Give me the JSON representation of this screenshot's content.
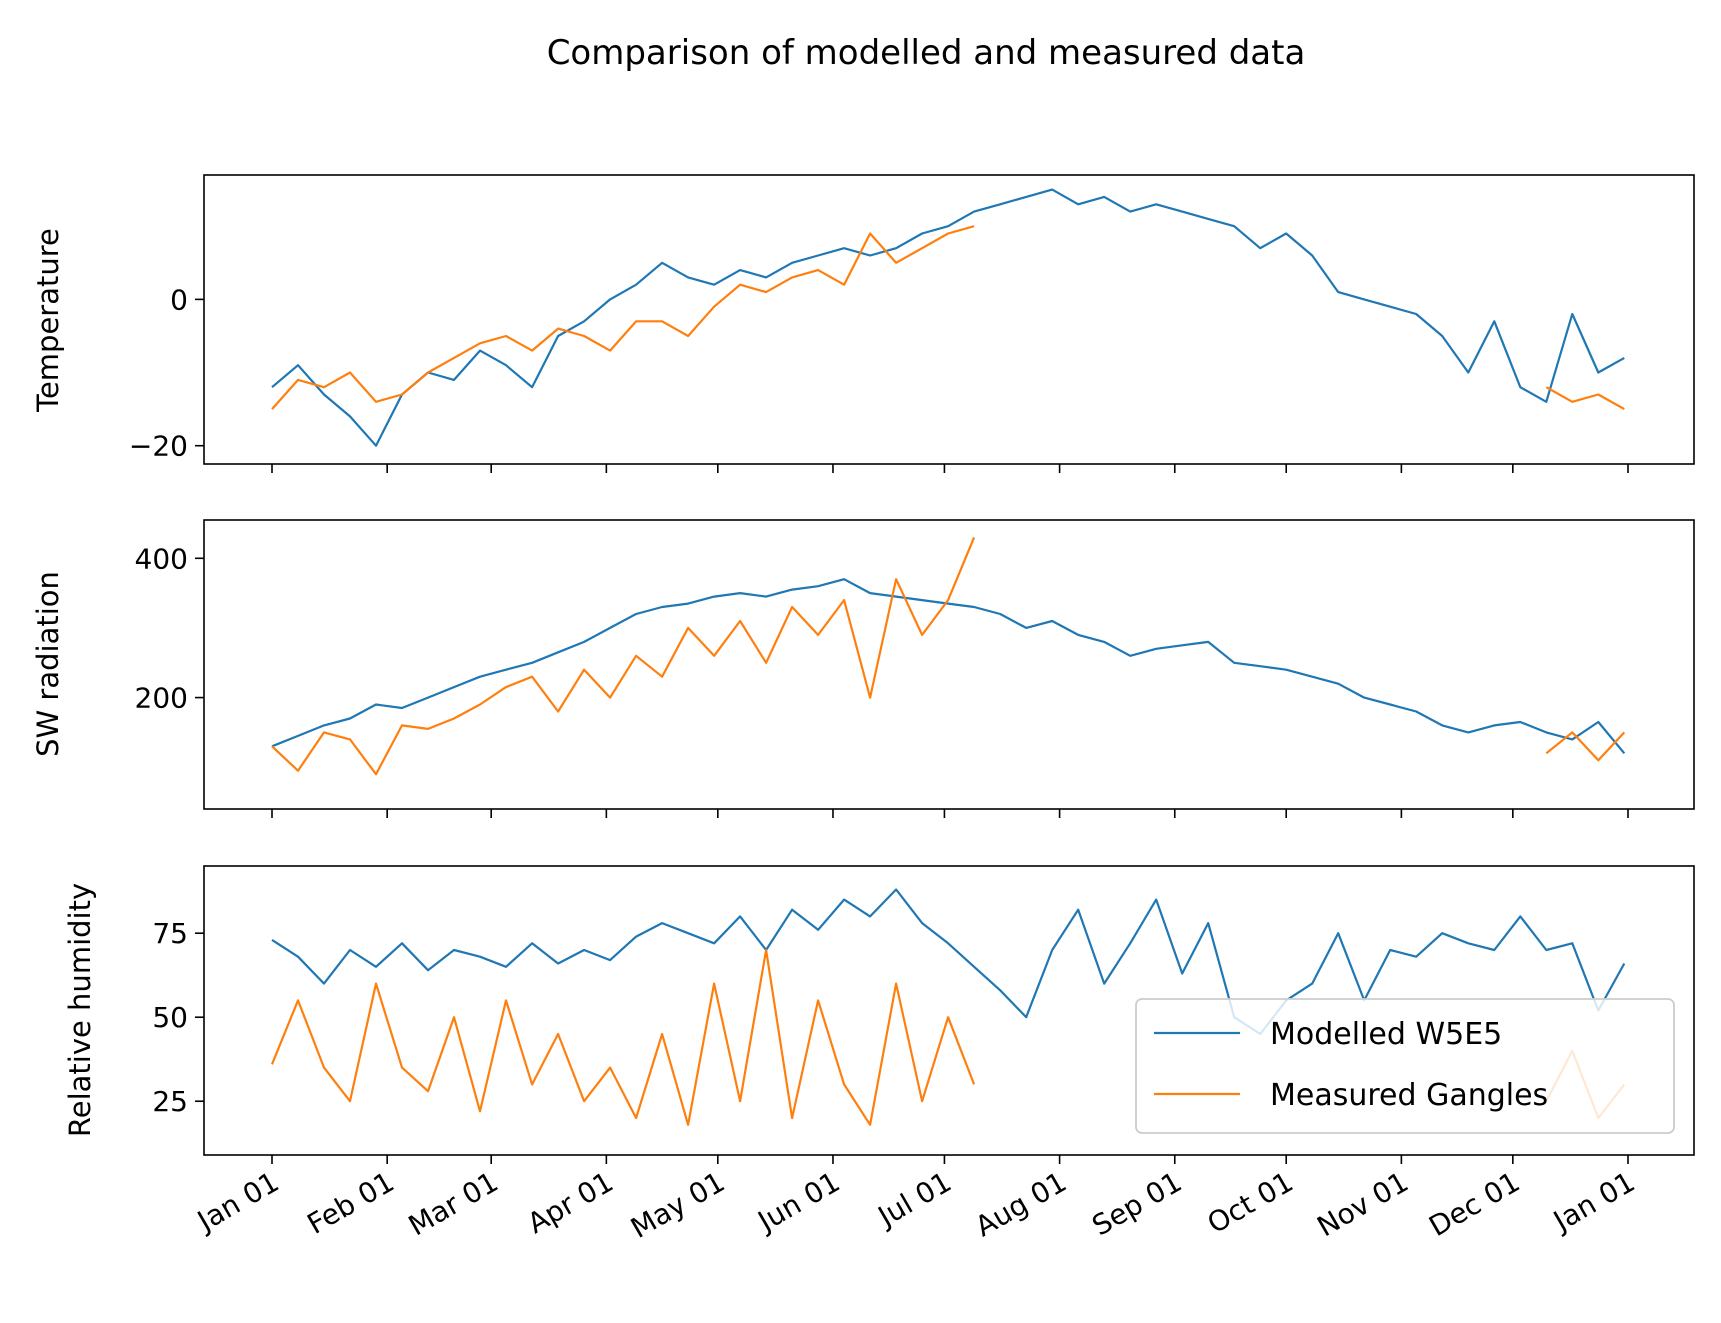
{
  "title": "Comparison of modelled and measured data",
  "colors": {
    "modelled": "#1f77b4",
    "measured": "#ff7f0e"
  },
  "legend": {
    "placement": "lower-right",
    "entries": [
      {
        "label": "Modelled W5E5",
        "color": "#1f77b4"
      },
      {
        "label": "Measured Gangles",
        "color": "#ff7f0e"
      }
    ]
  },
  "chart_data": [
    {
      "type": "line",
      "ylabel": "Temperature",
      "xlabel": "",
      "xlim": [
        "Dec 26",
        "Jan 06"
      ],
      "ylim": [
        -22.5,
        17
      ],
      "yticks": [
        -20,
        0
      ],
      "yticklabels": [
        "−20",
        "0"
      ],
      "xtick_labels": [
        "Jan 01",
        "Feb 01",
        "Mar 01",
        "Apr 01",
        "May 01",
        "Jun 01",
        "Jul 01",
        "Aug 01",
        "Sep 01",
        "Oct 01",
        "Nov 01",
        "Dec 01",
        "Jan 01"
      ],
      "series": [
        {
          "name": "Modelled W5E5",
          "color": "#1f77b4",
          "x": [
            "Jan 01",
            "Jan 08",
            "Jan 15",
            "Jan 22",
            "Jan 29",
            "Feb 05",
            "Feb 12",
            "Feb 19",
            "Feb 26",
            "Mar 05",
            "Mar 12",
            "Mar 19",
            "Mar 26",
            "Apr 02",
            "Apr 09",
            "Apr 16",
            "Apr 23",
            "Apr 30",
            "May 07",
            "May 14",
            "May 21",
            "May 28",
            "Jun 04",
            "Jun 11",
            "Jun 18",
            "Jun 25",
            "Jul 02",
            "Jul 09",
            "Jul 16",
            "Jul 23",
            "Jul 30",
            "Aug 06",
            "Aug 13",
            "Aug 20",
            "Aug 27",
            "Sep 03",
            "Sep 10",
            "Sep 17",
            "Sep 24",
            "Oct 01",
            "Oct 08",
            "Oct 15",
            "Oct 22",
            "Oct 29",
            "Nov 05",
            "Nov 12",
            "Nov 19",
            "Nov 26",
            "Dec 03",
            "Dec 10",
            "Dec 17",
            "Dec 24",
            "Dec 31"
          ],
          "y": [
            -12,
            -9,
            -13,
            -16,
            -20,
            -13,
            -10,
            -11,
            -7,
            -9,
            -12,
            -5,
            -3,
            0,
            2,
            5,
            3,
            2,
            4,
            3,
            5,
            6,
            7,
            6,
            7,
            9,
            10,
            12,
            13,
            14,
            15,
            13,
            14,
            12,
            13,
            12,
            11,
            10,
            7,
            9,
            6,
            1,
            0,
            -1,
            -2,
            -5,
            -10,
            -3,
            -12,
            -14,
            -2,
            -10,
            -8
          ]
        },
        {
          "name": "Measured Gangles",
          "color": "#ff7f0e",
          "x": [
            "Jan 01",
            "Jan 08",
            "Jan 15",
            "Jan 22",
            "Jan 29",
            "Feb 05",
            "Feb 12",
            "Feb 19",
            "Feb 26",
            "Mar 05",
            "Mar 12",
            "Mar 19",
            "Mar 26",
            "Apr 02",
            "Apr 09",
            "Apr 16",
            "Apr 23",
            "Apr 30",
            "May 07",
            "May 14",
            "May 21",
            "May 28",
            "Jun 04",
            "Jun 11",
            "Jun 18",
            "Jun 25",
            "Jul 02",
            "Jul 09",
            null,
            "Dec 10",
            "Dec 17",
            "Dec 24",
            "Dec 31"
          ],
          "y": [
            -15,
            -11,
            -12,
            -10,
            -14,
            -13,
            -10,
            -8,
            -6,
            -5,
            -7,
            -4,
            -5,
            -7,
            -3,
            -3,
            -5,
            -1,
            2,
            1,
            3,
            4,
            2,
            9,
            5,
            7,
            9,
            10,
            null,
            -12,
            -14,
            -13,
            -15
          ]
        }
      ]
    },
    {
      "type": "line",
      "ylabel": "SW radiation",
      "xlabel": "",
      "xlim": [
        "Dec 26",
        "Jan 06"
      ],
      "ylim": [
        40,
        455
      ],
      "yticks": [
        200,
        400
      ],
      "yticklabels": [
        "200",
        "400"
      ],
      "xtick_labels": [
        "Jan 01",
        "Feb 01",
        "Mar 01",
        "Apr 01",
        "May 01",
        "Jun 01",
        "Jul 01",
        "Aug 01",
        "Sep 01",
        "Oct 01",
        "Nov 01",
        "Dec 01",
        "Jan 01"
      ],
      "series": [
        {
          "name": "Modelled W5E5",
          "color": "#1f77b4",
          "x": [
            "Jan 01",
            "Jan 08",
            "Jan 15",
            "Jan 22",
            "Jan 29",
            "Feb 05",
            "Feb 12",
            "Feb 19",
            "Feb 26",
            "Mar 05",
            "Mar 12",
            "Mar 19",
            "Mar 26",
            "Apr 02",
            "Apr 09",
            "Apr 16",
            "Apr 23",
            "Apr 30",
            "May 07",
            "May 14",
            "May 21",
            "May 28",
            "Jun 04",
            "Jun 11",
            "Jun 18",
            "Jun 25",
            "Jul 02",
            "Jul 09",
            "Jul 16",
            "Jul 23",
            "Jul 30",
            "Aug 06",
            "Aug 13",
            "Aug 20",
            "Aug 27",
            "Sep 03",
            "Sep 10",
            "Sep 17",
            "Sep 24",
            "Oct 01",
            "Oct 08",
            "Oct 15",
            "Oct 22",
            "Oct 29",
            "Nov 05",
            "Nov 12",
            "Nov 19",
            "Nov 26",
            "Dec 03",
            "Dec 10",
            "Dec 17",
            "Dec 24",
            "Dec 31"
          ],
          "y": [
            130,
            145,
            160,
            170,
            190,
            185,
            200,
            215,
            230,
            240,
            250,
            265,
            280,
            300,
            320,
            330,
            335,
            345,
            350,
            345,
            355,
            360,
            370,
            350,
            345,
            340,
            335,
            330,
            320,
            300,
            310,
            290,
            280,
            260,
            270,
            275,
            280,
            250,
            245,
            240,
            230,
            220,
            200,
            190,
            180,
            160,
            150,
            160,
            165,
            150,
            140,
            165,
            120
          ]
        },
        {
          "name": "Measured Gangles",
          "color": "#ff7f0e",
          "x": [
            "Jan 01",
            "Jan 08",
            "Jan 15",
            "Jan 22",
            "Jan 29",
            "Feb 05",
            "Feb 12",
            "Feb 19",
            "Feb 26",
            "Mar 05",
            "Mar 12",
            "Mar 19",
            "Mar 26",
            "Apr 02",
            "Apr 09",
            "Apr 16",
            "Apr 23",
            "Apr 30",
            "May 07",
            "May 14",
            "May 21",
            "May 28",
            "Jun 04",
            "Jun 11",
            "Jun 18",
            "Jun 25",
            "Jul 02",
            "Jul 09",
            null,
            "Dec 10",
            "Dec 17",
            "Dec 24",
            "Dec 31"
          ],
          "y": [
            130,
            95,
            150,
            140,
            90,
            160,
            155,
            170,
            190,
            215,
            230,
            180,
            240,
            200,
            260,
            230,
            300,
            260,
            310,
            250,
            330,
            290,
            340,
            200,
            370,
            290,
            340,
            430,
            null,
            120,
            150,
            110,
            150
          ]
        }
      ]
    },
    {
      "type": "line",
      "ylabel": "Relative humidity",
      "xlabel": "",
      "xlim": [
        "Dec 26",
        "Jan 06"
      ],
      "ylim": [
        9,
        95
      ],
      "yticks": [
        25,
        50,
        75
      ],
      "yticklabels": [
        "25",
        "50",
        "75"
      ],
      "xtick_labels": [
        "Jan 01",
        "Feb 01",
        "Mar 01",
        "Apr 01",
        "May 01",
        "Jun 01",
        "Jul 01",
        "Aug 01",
        "Sep 01",
        "Oct 01",
        "Nov 01",
        "Dec 01",
        "Jan 01"
      ],
      "series": [
        {
          "name": "Modelled W5E5",
          "color": "#1f77b4",
          "x": [
            "Jan 01",
            "Jan 08",
            "Jan 15",
            "Jan 22",
            "Jan 29",
            "Feb 05",
            "Feb 12",
            "Feb 19",
            "Feb 26",
            "Mar 05",
            "Mar 12",
            "Mar 19",
            "Mar 26",
            "Apr 02",
            "Apr 09",
            "Apr 16",
            "Apr 23",
            "Apr 30",
            "May 07",
            "May 14",
            "May 21",
            "May 28",
            "Jun 04",
            "Jun 11",
            "Jun 18",
            "Jun 25",
            "Jul 02",
            "Jul 09",
            "Jul 16",
            "Jul 23",
            "Jul 30",
            "Aug 06",
            "Aug 13",
            "Aug 20",
            "Aug 27",
            "Sep 03",
            "Sep 10",
            "Sep 17",
            "Sep 24",
            "Oct 01",
            "Oct 08",
            "Oct 15",
            "Oct 22",
            "Oct 29",
            "Nov 05",
            "Nov 12",
            "Nov 19",
            "Nov 26",
            "Dec 03",
            "Dec 10",
            "Dec 17",
            "Dec 24",
            "Dec 31"
          ],
          "y": [
            73,
            68,
            60,
            70,
            65,
            72,
            64,
            70,
            68,
            65,
            72,
            66,
            70,
            67,
            74,
            78,
            75,
            72,
            80,
            70,
            82,
            76,
            85,
            80,
            88,
            78,
            72,
            65,
            58,
            50,
            70,
            82,
            60,
            72,
            85,
            63,
            78,
            50,
            45,
            55,
            60,
            75,
            55,
            70,
            68,
            75,
            72,
            70,
            80,
            70,
            72,
            52,
            66
          ]
        },
        {
          "name": "Measured Gangles",
          "color": "#ff7f0e",
          "x": [
            "Jan 01",
            "Jan 08",
            "Jan 15",
            "Jan 22",
            "Jan 29",
            "Feb 05",
            "Feb 12",
            "Feb 19",
            "Feb 26",
            "Mar 05",
            "Mar 12",
            "Mar 19",
            "Mar 26",
            "Apr 02",
            "Apr 09",
            "Apr 16",
            "Apr 23",
            "Apr 30",
            "May 07",
            "May 14",
            "May 21",
            "May 28",
            "Jun 04",
            "Jun 11",
            "Jun 18",
            "Jun 25",
            "Jul 02",
            "Jul 09",
            null,
            "Dec 10",
            "Dec 17",
            "Dec 24",
            "Dec 31"
          ],
          "y": [
            36,
            55,
            35,
            25,
            60,
            35,
            28,
            50,
            22,
            55,
            30,
            45,
            25,
            35,
            20,
            45,
            18,
            60,
            25,
            70,
            20,
            55,
            30,
            18,
            60,
            25,
            50,
            30,
            null,
            25,
            40,
            20,
            30
          ]
        }
      ]
    }
  ]
}
